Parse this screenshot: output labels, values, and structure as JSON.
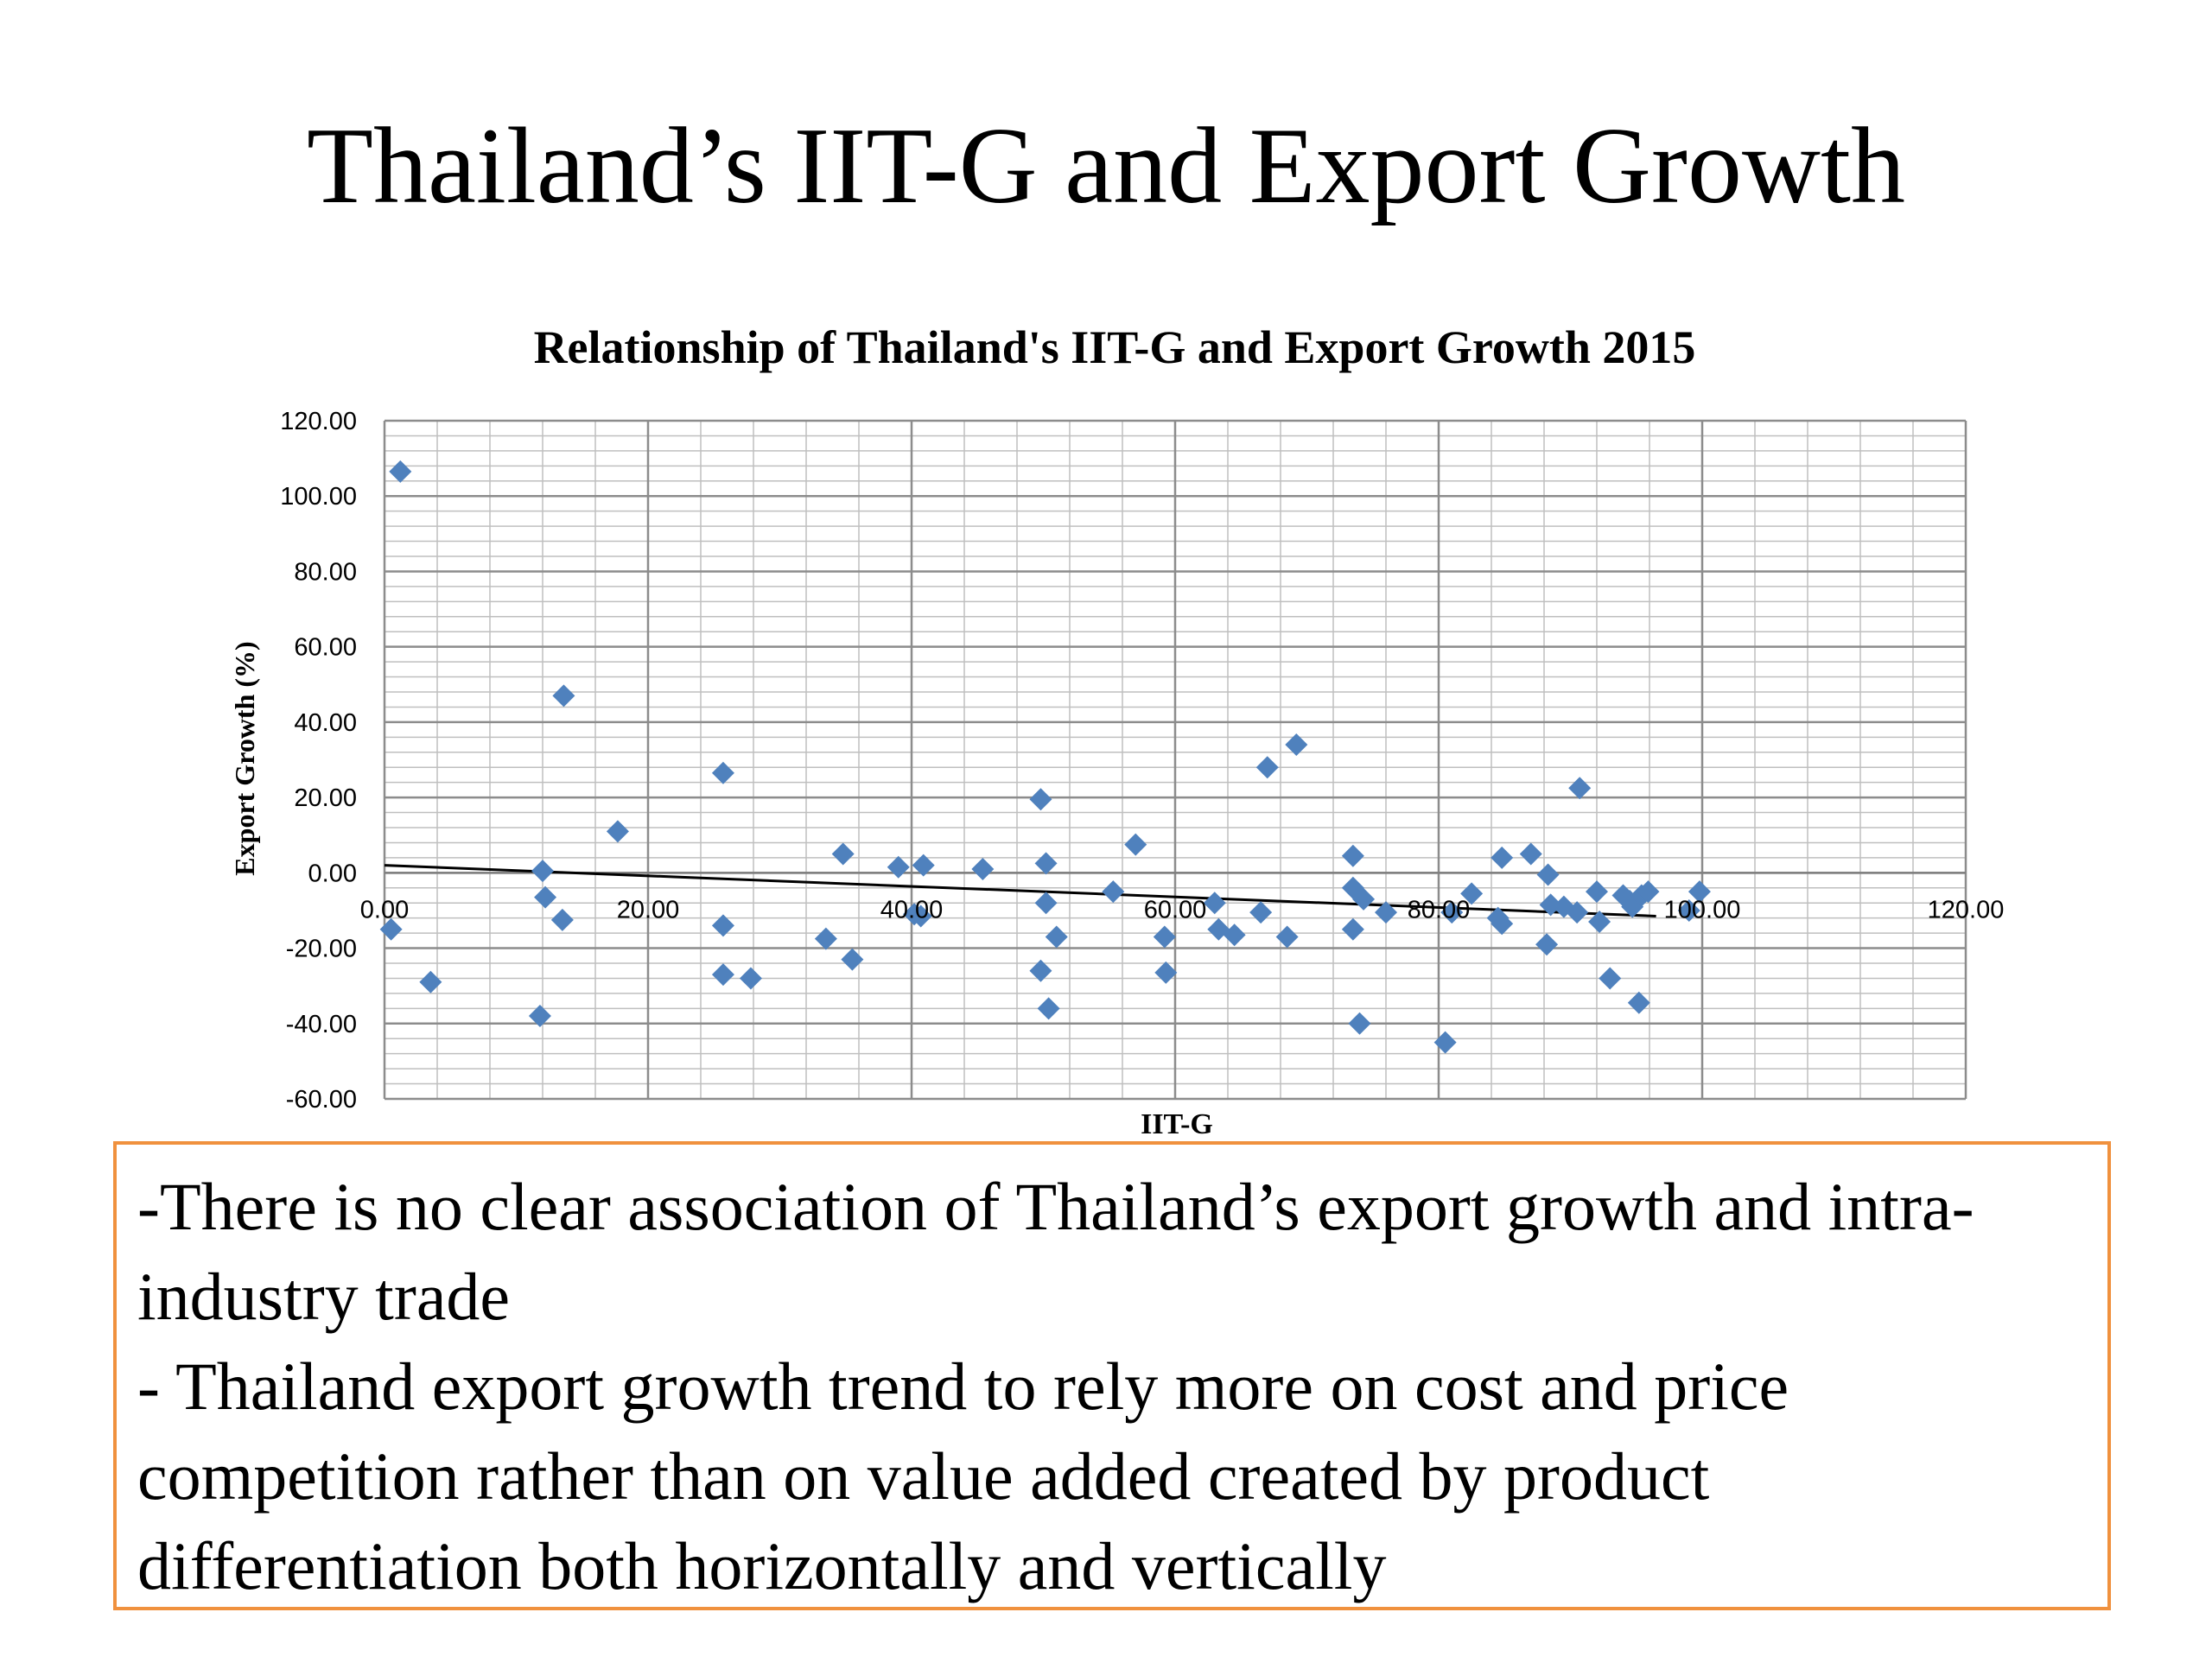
{
  "slide": {
    "title": "Thailand’s IIT-G and Export Growth"
  },
  "chart_data": {
    "type": "scatter",
    "title": "Relationship of Thailand's IIT-G and Export Growth 2015",
    "xlabel": "IIT-G",
    "ylabel": "Export Growth (%)",
    "xlim": [
      0,
      120
    ],
    "ylim": [
      -60,
      120
    ],
    "x_ticks": [
      "0.00",
      "20.00",
      "40.00",
      "60.00",
      "80.00",
      "100.00",
      "120.00"
    ],
    "y_ticks": [
      "120.00",
      "100.00",
      "80.00",
      "60.00",
      "40.00",
      "20.00",
      "0.00",
      "-20.00",
      "-40.00",
      "-60.00"
    ],
    "grid": true,
    "legend": "none",
    "marker": "diamond",
    "marker_color": "#4f81bd",
    "trendline": {
      "type": "linear",
      "x": [
        0,
        96.5
      ],
      "y": [
        2.0,
        -11.5
      ],
      "color": "#000000"
    },
    "series": [
      {
        "points": [
          [
            1.2,
            106.5
          ],
          [
            0.5,
            -15
          ],
          [
            3.5,
            -29
          ],
          [
            12.0,
            0.5
          ],
          [
            12.2,
            -6.5
          ],
          [
            13.5,
            -12.5
          ],
          [
            11.8,
            -38
          ],
          [
            13.6,
            47
          ],
          [
            17.7,
            11
          ],
          [
            25.7,
            26.5
          ],
          [
            25.7,
            -14
          ],
          [
            25.7,
            -27
          ],
          [
            27.8,
            -28
          ],
          [
            33.5,
            -17.5
          ],
          [
            34.8,
            5
          ],
          [
            35.5,
            -23
          ],
          [
            39.0,
            1.5
          ],
          [
            40.2,
            -11
          ],
          [
            40.9,
            2
          ],
          [
            40.7,
            -11.5
          ],
          [
            45.4,
            1
          ],
          [
            49.8,
            19.5
          ],
          [
            50.2,
            2.5
          ],
          [
            50.2,
            -8
          ],
          [
            49.8,
            -26
          ],
          [
            50.4,
            -36
          ],
          [
            51.0,
            -17
          ],
          [
            55.3,
            -5
          ],
          [
            57.0,
            7.5
          ],
          [
            59.2,
            -17
          ],
          [
            59.3,
            -26.5
          ],
          [
            63.0,
            -8
          ],
          [
            63.3,
            -15
          ],
          [
            64.5,
            -16.5
          ],
          [
            66.5,
            -10.5
          ],
          [
            67.0,
            28
          ],
          [
            68.5,
            -17
          ],
          [
            69.2,
            34
          ],
          [
            73.5,
            4.5
          ],
          [
            73.5,
            -4
          ],
          [
            73.5,
            -15
          ],
          [
            74.0,
            -40
          ],
          [
            74.3,
            -7
          ],
          [
            76.0,
            -10.5
          ],
          [
            80.5,
            -45
          ],
          [
            81.0,
            -10.5
          ],
          [
            82.5,
            -5.5
          ],
          [
            84.5,
            -12
          ],
          [
            84.8,
            4
          ],
          [
            84.8,
            -13.5
          ],
          [
            87.0,
            5
          ],
          [
            88.2,
            -19
          ],
          [
            88.3,
            -0.5
          ],
          [
            88.5,
            -8.5
          ],
          [
            89.5,
            -9
          ],
          [
            90.5,
            -10.5
          ],
          [
            90.7,
            22.5
          ],
          [
            92.0,
            -5
          ],
          [
            92.2,
            -13
          ],
          [
            93.0,
            -28
          ],
          [
            94.0,
            -6
          ],
          [
            94.5,
            -7.5
          ],
          [
            94.7,
            -9
          ],
          [
            95.2,
            -34.5
          ],
          [
            95.4,
            -6
          ],
          [
            95.9,
            -5
          ],
          [
            99.0,
            -10
          ],
          [
            99.8,
            -5
          ]
        ]
      }
    ]
  },
  "note": {
    "line1": "-There is no clear association of Thailand’s export growth and intra-industry trade",
    "line2": "- Thailand export growth trend to rely more on cost and price competition rather than on value added created by product differentiation both horizontally and vertically"
  }
}
